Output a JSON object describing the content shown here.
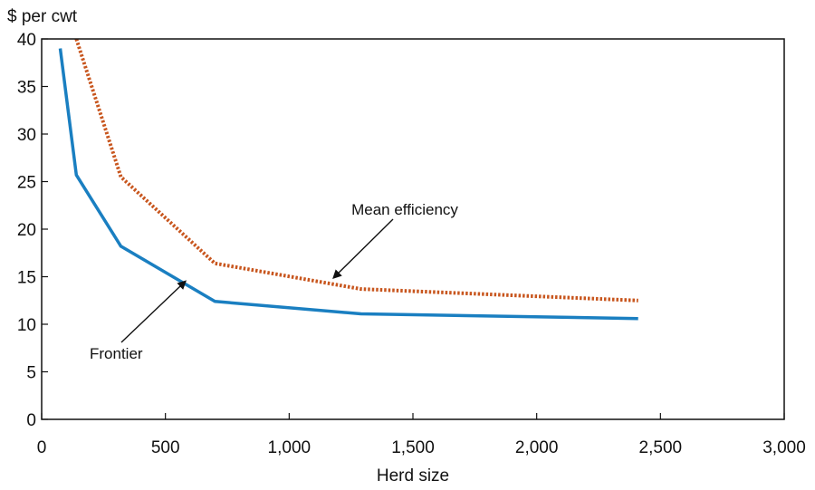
{
  "chart_data": {
    "type": "line",
    "ylabel": "$ per cwt",
    "xlabel": "Herd size",
    "xlim": [
      0,
      3000
    ],
    "ylim": [
      0,
      40
    ],
    "x_ticks": [
      0,
      500,
      1000,
      1500,
      2000,
      2500,
      3000
    ],
    "x_tick_labels": [
      "0",
      "500",
      "1,000",
      "1,500",
      "2,000",
      "2,500",
      "3,000"
    ],
    "y_ticks": [
      0,
      5,
      10,
      15,
      20,
      25,
      30,
      35,
      40
    ],
    "y_tick_labels": [
      "0",
      "5",
      "10",
      "15",
      "20",
      "25",
      "30",
      "35",
      "40"
    ],
    "grid": false,
    "series": [
      {
        "name": "Frontier",
        "style": "solid",
        "color": "#1a7fc1",
        "x": [
          75,
          140,
          320,
          700,
          1290,
          2410
        ],
        "y": [
          39.0,
          25.7,
          18.2,
          12.4,
          11.1,
          10.6
        ]
      },
      {
        "name": "Mean efficiency",
        "style": "dotted",
        "color": "#c8561e",
        "x": [
          140,
          320,
          700,
          1290,
          2410
        ],
        "y": [
          40.0,
          25.5,
          16.4,
          13.7,
          12.5
        ]
      }
    ],
    "annotations": [
      {
        "text": "Mean efficiency",
        "points_to": "Mean efficiency",
        "target": [
          1180,
          14.9
        ]
      },
      {
        "text": "Frontier",
        "points_to": "Frontier",
        "target": [
          580,
          14.5
        ]
      }
    ]
  }
}
